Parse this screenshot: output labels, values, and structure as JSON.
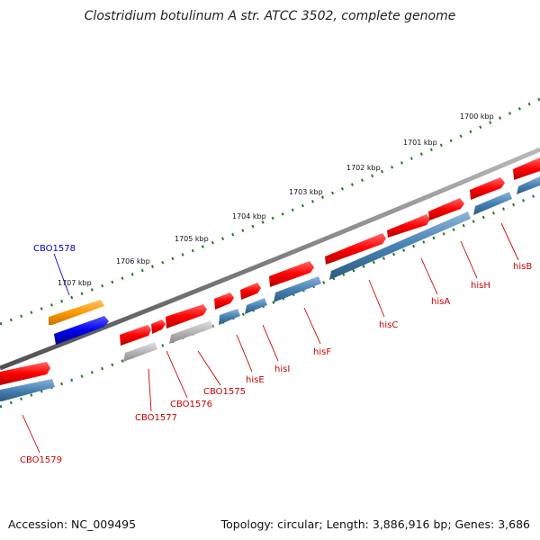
{
  "title": "Clostridium botulinum A str. ATCC 3502, complete genome",
  "footer": {
    "accession": "Accession: NC_009495",
    "topology": "Topology: circular; Length: 3,886,916 bp; Genes: 3,686"
  },
  "colors": {
    "backbone": "#808080",
    "tick": "#1f7a1f",
    "forward_gene": "#ff0000",
    "reverse_gene": "#4682b4",
    "pseudo_gene": "#b0b0b0",
    "highlight_forward": "#ff9900",
    "highlight_reverse": "#0000ee",
    "label_red": "#cc0000",
    "label_blue": "#0000cc"
  },
  "scale_labels": [
    "1700 kbp",
    "1701 kbp",
    "1702 kbp",
    "1703 kbp",
    "1704 kbp",
    "1705 kbp",
    "1706 kbp",
    "1707 kbp"
  ],
  "gene_labels": [
    "CBO1578",
    "CBO1579",
    "CBO1577",
    "CBO1576",
    "CBO1575",
    "hisE",
    "hisI",
    "hisF",
    "hisC",
    "hisA",
    "hisH",
    "hisB"
  ]
}
